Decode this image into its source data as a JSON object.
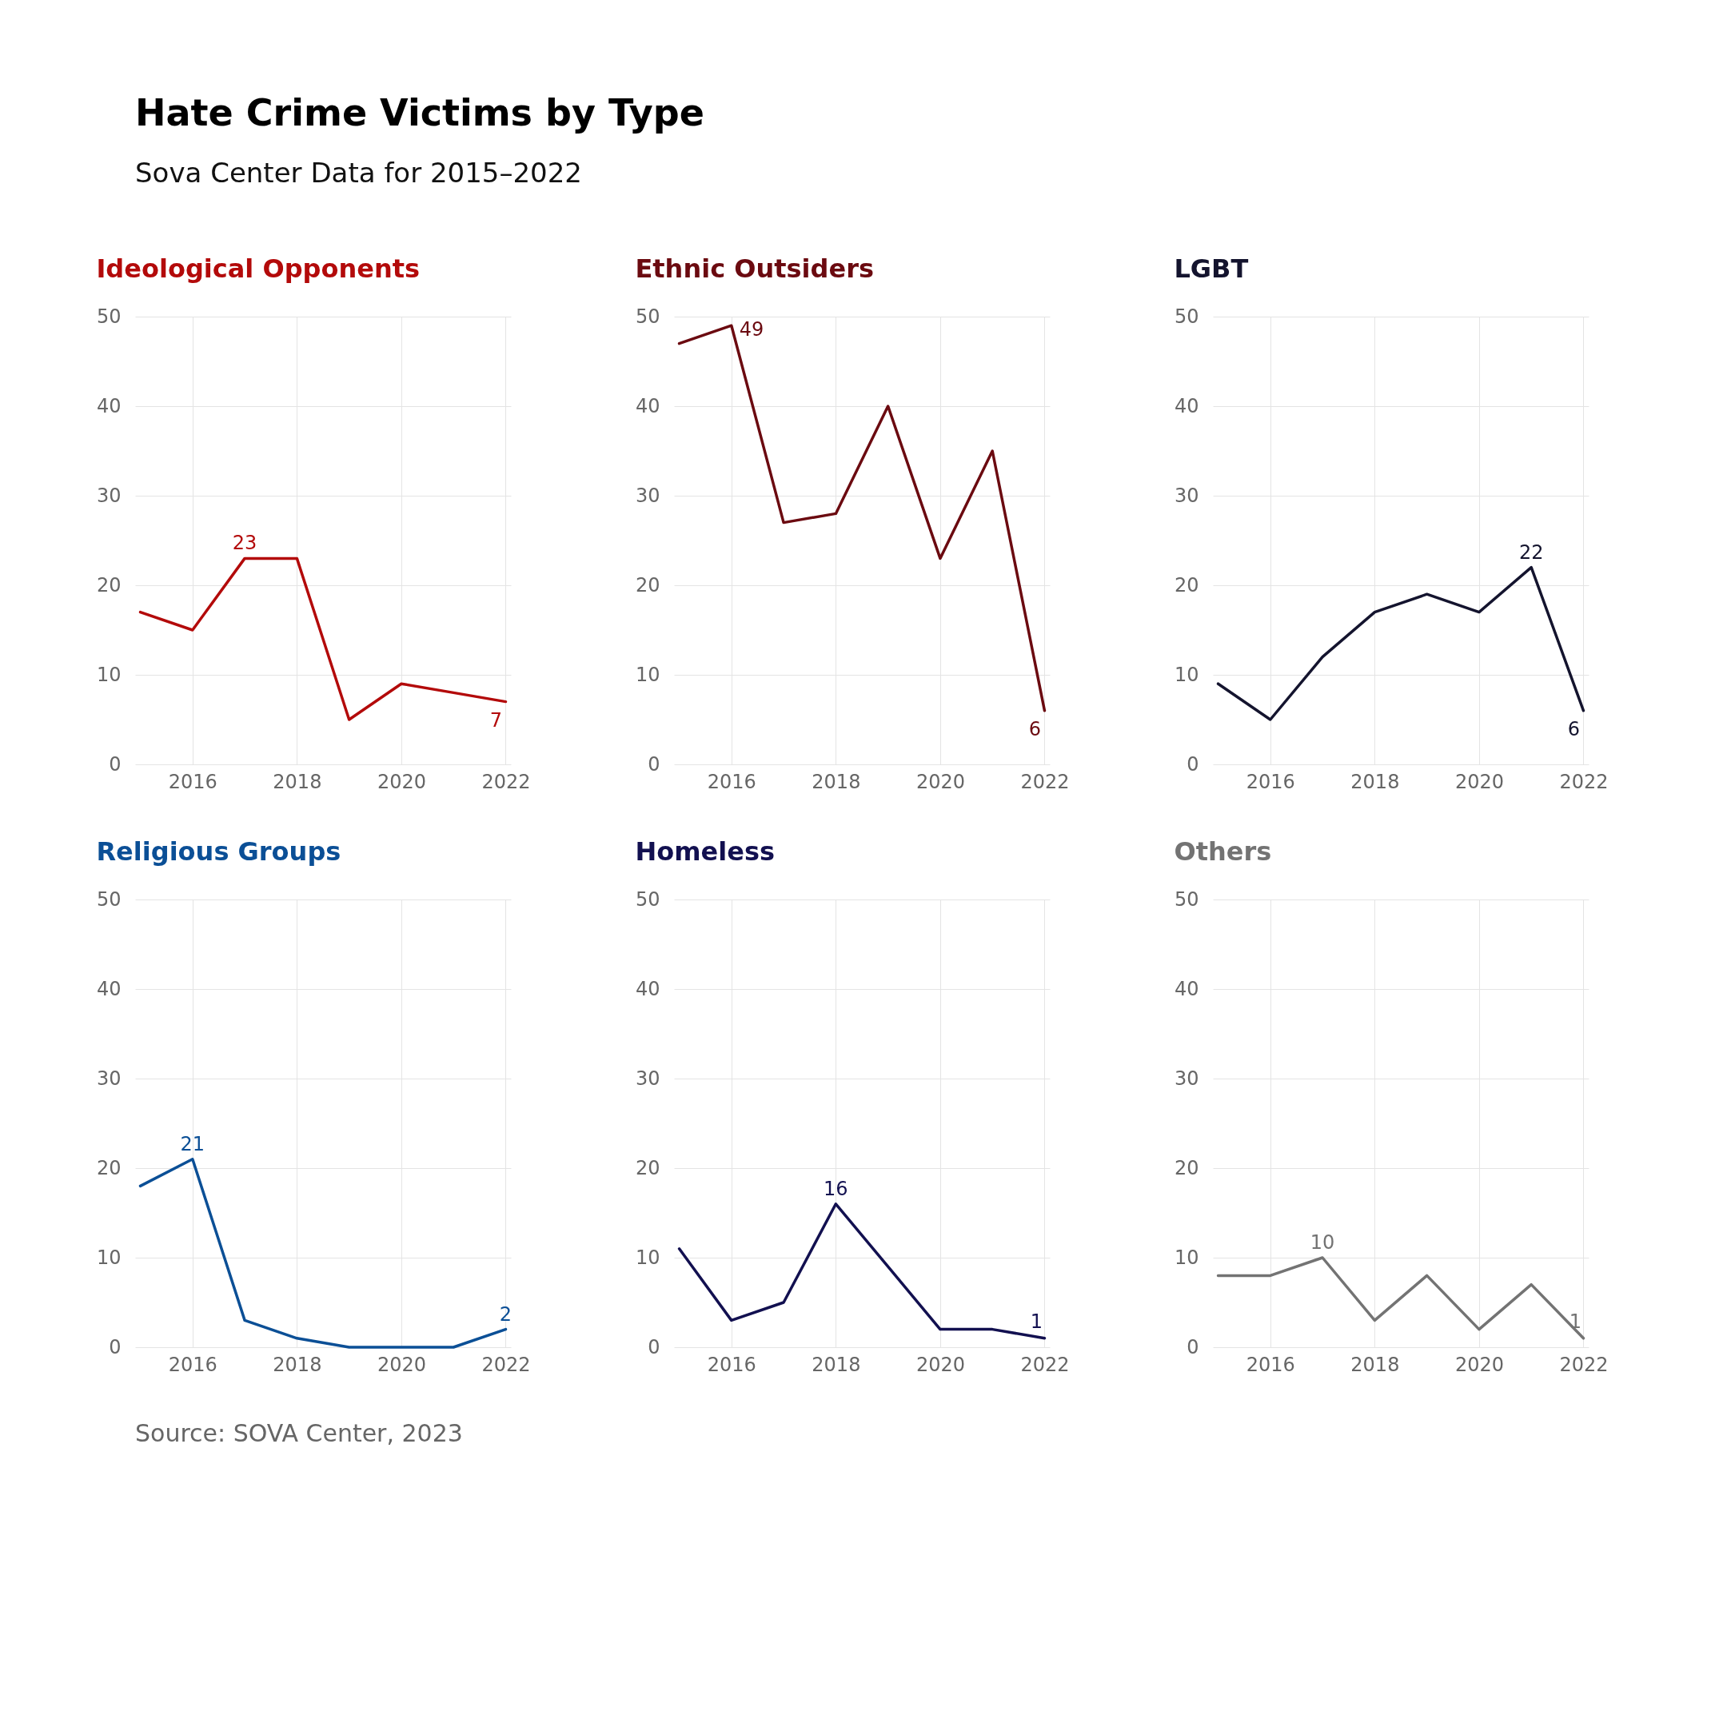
{
  "chart_data": [
    {
      "type": "other",
      "title": "Hate Crime Victims by Type",
      "subtitle": "Sova Center Data for 2015–2022"
    },
    {
      "type": "line",
      "title": "Ideological Opponents",
      "x": [
        2015,
        2016,
        2017,
        2018,
        2019,
        2020,
        2021,
        2022
      ],
      "xlim": [
        2014.9,
        2022.1
      ],
      "xticks": [
        2016,
        2018,
        2020,
        2022
      ],
      "ylim": [
        0,
        50
      ],
      "yticks": [
        0,
        10,
        20,
        30,
        40,
        50
      ],
      "grid": true,
      "series": [
        {
          "color": "#b30a0a",
          "values": [
            17,
            15,
            23,
            23,
            5,
            9,
            8,
            7
          ]
        }
      ],
      "annotations": [
        {
          "text": "23",
          "x": 2017,
          "y": 23
        },
        {
          "text": "7",
          "x": 2022,
          "y": 7
        }
      ]
    },
    {
      "type": "line",
      "title": "Ethnic Outsiders",
      "x": [
        2015,
        2016,
        2017,
        2018,
        2019,
        2020,
        2021,
        2022
      ],
      "xlim": [
        2014.9,
        2022.1
      ],
      "xticks": [
        2016,
        2018,
        2020,
        2022
      ],
      "ylim": [
        0,
        50
      ],
      "yticks": [
        0,
        10,
        20,
        30,
        40,
        50
      ],
      "grid": true,
      "series": [
        {
          "color": "#6b0a10",
          "values": [
            47,
            49,
            27,
            28,
            40,
            23,
            35,
            6
          ]
        }
      ],
      "annotations": [
        {
          "text": "49",
          "x": 2016,
          "y": 49
        },
        {
          "text": "6",
          "x": 2022,
          "y": 6
        }
      ]
    },
    {
      "type": "line",
      "title": "LGBT",
      "x": [
        2015,
        2016,
        2017,
        2018,
        2019,
        2020,
        2021,
        2022
      ],
      "xlim": [
        2014.9,
        2022.1
      ],
      "xticks": [
        2016,
        2018,
        2020,
        2022
      ],
      "ylim": [
        0,
        50
      ],
      "yticks": [
        0,
        10,
        20,
        30,
        40,
        50
      ],
      "grid": true,
      "series": [
        {
          "color": "#14142e",
          "values": [
            9,
            5,
            12,
            17,
            19,
            17,
            22,
            6
          ]
        }
      ],
      "annotations": [
        {
          "text": "22",
          "x": 2021,
          "y": 22
        },
        {
          "text": "6",
          "x": 2022,
          "y": 6
        }
      ]
    },
    {
      "type": "line",
      "title": "Religious Groups",
      "x": [
        2015,
        2016,
        2017,
        2018,
        2019,
        2020,
        2021,
        2022
      ],
      "xlim": [
        2014.9,
        2022.1
      ],
      "xticks": [
        2016,
        2018,
        2020,
        2022
      ],
      "ylim": [
        0,
        50
      ],
      "yticks": [
        0,
        10,
        20,
        30,
        40,
        50
      ],
      "grid": true,
      "series": [
        {
          "color": "#0b4f96",
          "values": [
            18,
            21,
            3,
            1,
            0,
            0,
            0,
            2
          ]
        }
      ],
      "annotations": [
        {
          "text": "21",
          "x": 2016,
          "y": 21
        },
        {
          "text": "2",
          "x": 2022,
          "y": 2
        }
      ]
    },
    {
      "type": "line",
      "title": "Homeless",
      "x": [
        2015,
        2016,
        2017,
        2018,
        2019,
        2020,
        2021,
        2022
      ],
      "xlim": [
        2014.9,
        2022.1
      ],
      "xticks": [
        2016,
        2018,
        2020,
        2022
      ],
      "ylim": [
        0,
        50
      ],
      "yticks": [
        0,
        10,
        20,
        30,
        40,
        50
      ],
      "grid": true,
      "series": [
        {
          "color": "#121050",
          "values": [
            11,
            3,
            5,
            16,
            9,
            2,
            2,
            1
          ]
        }
      ],
      "annotations": [
        {
          "text": "16",
          "x": 2018,
          "y": 16
        },
        {
          "text": "1",
          "x": 2022,
          "y": 1
        }
      ]
    },
    {
      "type": "line",
      "title": "Others",
      "x": [
        2015,
        2016,
        2017,
        2018,
        2019,
        2020,
        2021,
        2022
      ],
      "xlim": [
        2014.9,
        2022.1
      ],
      "xticks": [
        2016,
        2018,
        2020,
        2022
      ],
      "ylim": [
        0,
        50
      ],
      "yticks": [
        0,
        10,
        20,
        30,
        40,
        50
      ],
      "grid": true,
      "series": [
        {
          "color": "#737373",
          "values": [
            8,
            8,
            10,
            3,
            8,
            2,
            7,
            1
          ]
        }
      ],
      "annotations": [
        {
          "text": "10",
          "x": 2017,
          "y": 10
        },
        {
          "text": "1",
          "x": 2022,
          "y": 1
        }
      ]
    },
    {
      "type": "other",
      "annotations": [
        "Source: SOVA Center, 2023"
      ]
    }
  ]
}
